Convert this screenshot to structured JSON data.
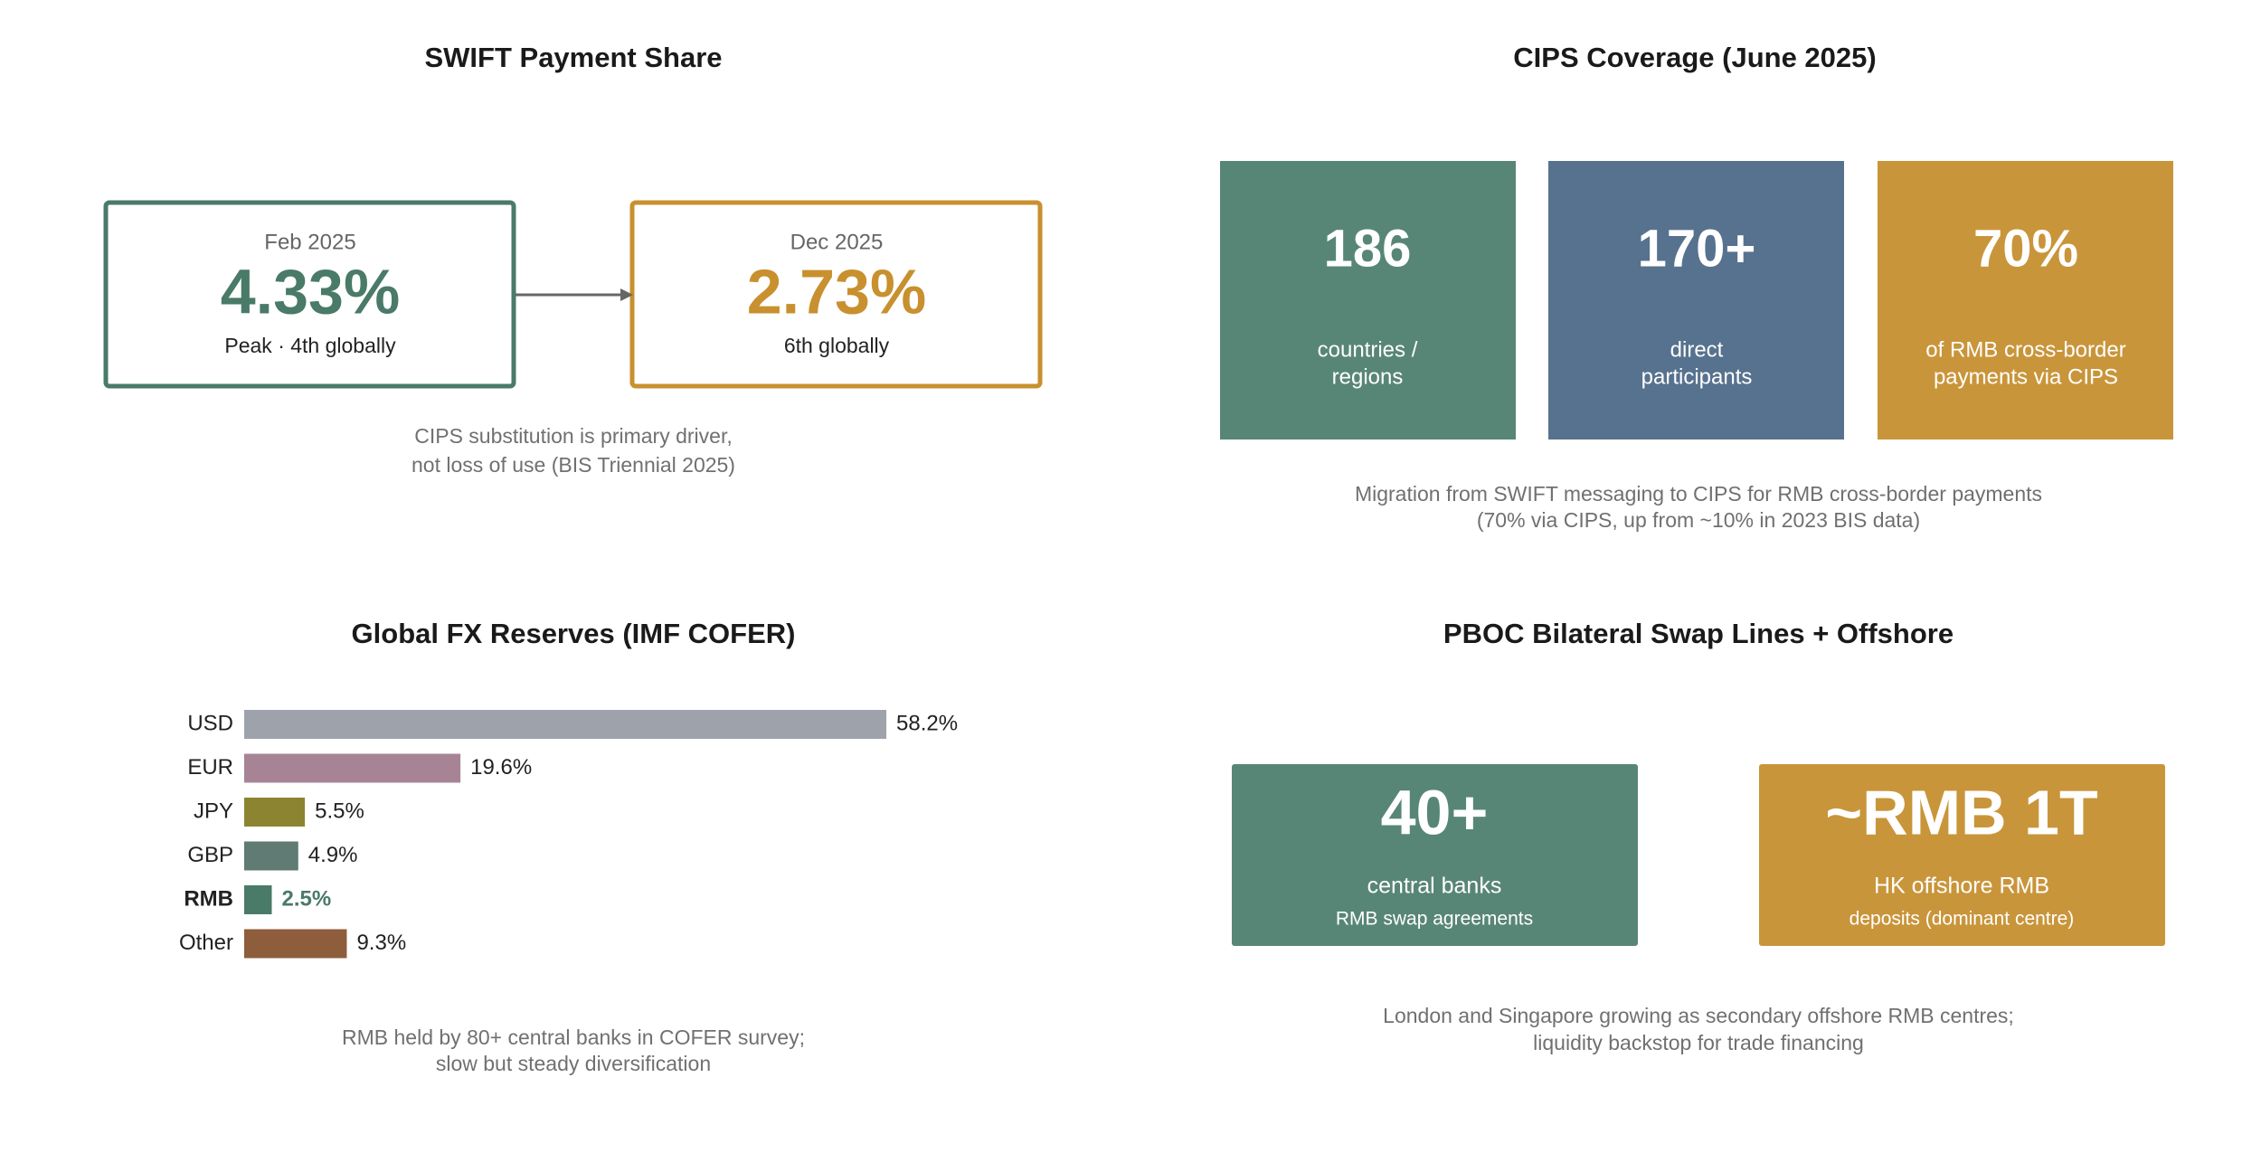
{
  "swift": {
    "title": "SWIFT Payment Share",
    "from": {
      "date": "Feb 2025",
      "value": "4.33%",
      "note": "Peak · 4th globally"
    },
    "to": {
      "date": "Dec 2025",
      "value": "2.73%",
      "note": "6th globally"
    },
    "caption": [
      "CIPS substitution is primary driver,",
      "not loss of use (BIS Triennial 2025)"
    ]
  },
  "cips": {
    "title": "CIPS Coverage (June 2025)",
    "cards": [
      {
        "value": "186",
        "label": [
          "countries /",
          "regions"
        ]
      },
      {
        "value": "170+",
        "label": [
          "direct",
          "participants"
        ]
      },
      {
        "value": "70%",
        "label": [
          "of RMB cross-border",
          "payments via CIPS"
        ]
      }
    ],
    "caption": [
      "Migration from SWIFT messaging to CIPS for RMB cross-border payments",
      "(70% via CIPS, up from ~10% in 2023 BIS data)"
    ]
  },
  "chart_data": {
    "type": "bar",
    "orientation": "horizontal",
    "title": "Global FX Reserves (IMF COFER)",
    "categories": [
      "USD",
      "EUR",
      "JPY",
      "GBP",
      "RMB",
      "Other"
    ],
    "values": [
      58.2,
      19.6,
      5.5,
      4.9,
      2.5,
      9.3
    ],
    "value_labels": [
      "58.2%",
      "19.6%",
      "5.5%",
      "4.9%",
      "2.5%",
      "9.3%"
    ],
    "colors": [
      "#9ea2ab",
      "#a68496",
      "#8c8430",
      "#5f7b73",
      "#4a7a68",
      "#8e5d3c"
    ],
    "caption": [
      "RMB held by 80+ central banks in COFER survey;",
      "slow but steady diversification"
    ]
  },
  "swap": {
    "title": "PBOC Bilateral Swap Lines + Offshore",
    "cards": [
      {
        "value": "40+",
        "label": [
          "central banks",
          "RMB swap agreements"
        ]
      },
      {
        "value": "~RMB 1T",
        "label": [
          "HK offshore RMB",
          "deposits (dominant centre)"
        ]
      }
    ],
    "caption": [
      "London and Singapore growing as secondary offshore RMB centres;",
      "liquidity backstop for trade financing"
    ]
  }
}
